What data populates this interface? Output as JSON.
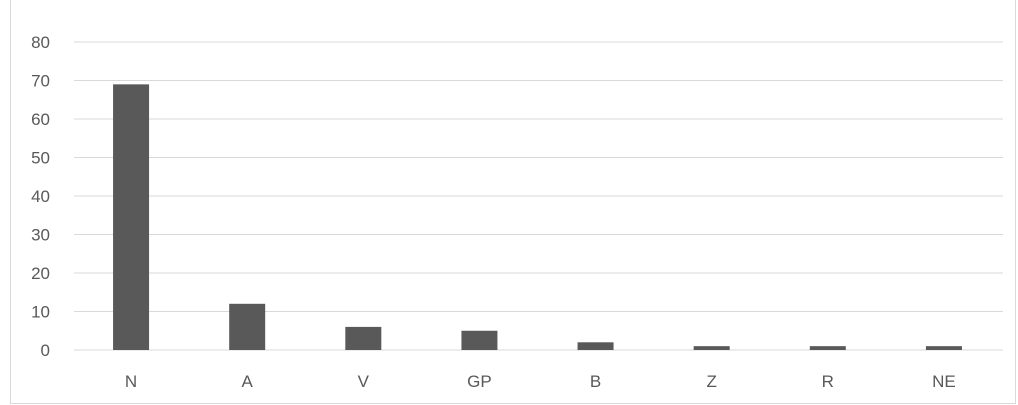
{
  "chart_data": {
    "type": "bar",
    "title": "",
    "xlabel": "",
    "ylabel": "",
    "categories": [
      "N",
      "A",
      "V",
      "GP",
      "B",
      "Z",
      "R",
      "NE"
    ],
    "values": [
      69,
      12,
      6,
      5,
      2,
      1,
      1,
      1
    ],
    "ylim": [
      0,
      80
    ],
    "yticks": [
      0,
      10,
      20,
      30,
      40,
      50,
      60,
      70,
      80
    ],
    "grid": true,
    "legend": "none",
    "colors": {
      "bar": "#595959",
      "grid": "#d9d9d9",
      "text": "#595959"
    }
  }
}
